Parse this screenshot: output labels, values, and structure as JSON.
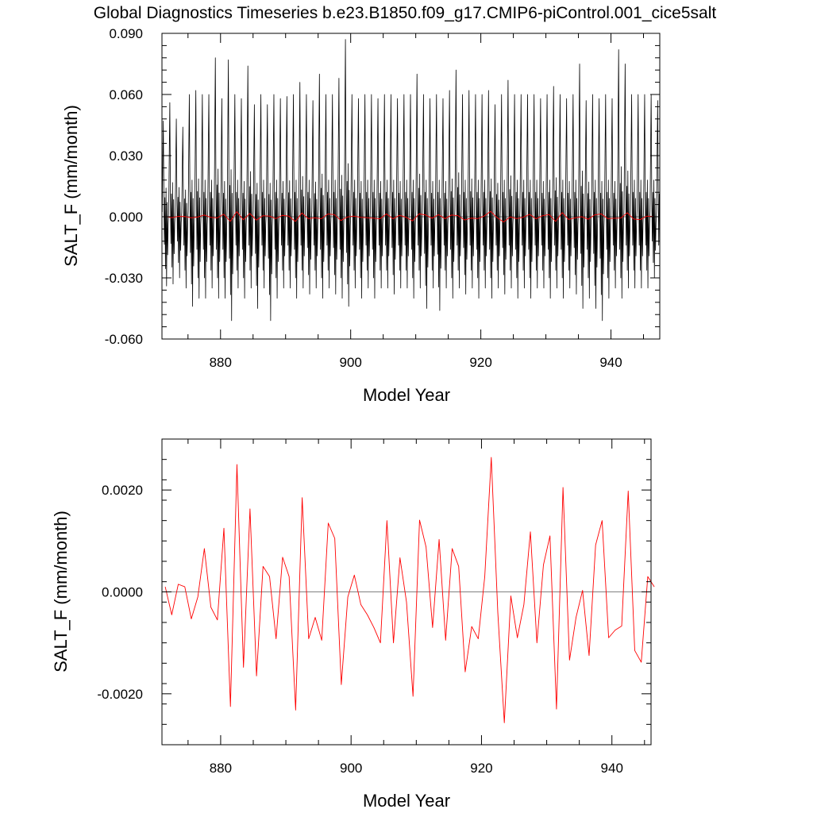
{
  "title": "Global Diagnostics Timeseries b.e23.B1850.f09_g17.CMIP6-piControl.001_cice5salt",
  "colors": {
    "monthly": "#000000",
    "annual": "#ff0000",
    "zero_line": "#808080",
    "background": "#ffffff"
  },
  "chart_data": [
    {
      "type": "line",
      "xlabel": "Model Year",
      "ylabel": "SALT_F (mm/month)",
      "xlim": [
        871,
        947.5
      ],
      "ylim": [
        -0.06,
        0.09
      ],
      "xticks": [
        880,
        900,
        920,
        940
      ],
      "xtick_labels": [
        "880",
        "900",
        "920",
        "940"
      ],
      "yticks": [
        -0.06,
        -0.03,
        0.0,
        0.03,
        0.06,
        0.09
      ],
      "ytick_labels": [
        "-0.060",
        "-0.030",
        "0.000",
        "0.030",
        "0.060",
        "0.090"
      ],
      "grid": false,
      "series": [
        {
          "resolution": "monthly",
          "color": "#000000",
          "x_start": 871.04,
          "x_step": 0.0833,
          "peaks": [
            0.047,
            0.056,
            0.048,
            0.044,
            0.06,
            0.062,
            0.06,
            0.06,
            0.078,
            0.058,
            0.077,
            0.06,
            0.058,
            0.074,
            0.055,
            0.06,
            0.055,
            0.06,
            0.058,
            0.059,
            0.06,
            0.066,
            0.06,
            0.057,
            0.07,
            0.06,
            0.06,
            0.068,
            0.087,
            0.06,
            0.058,
            0.06,
            0.06,
            0.058,
            0.06,
            0.06,
            0.058,
            0.06,
            0.06,
            0.07,
            0.06,
            0.058,
            0.06,
            0.058,
            0.062,
            0.072,
            0.06,
            0.062,
            0.06,
            0.06,
            0.062,
            0.055,
            0.06,
            0.067,
            0.06,
            0.06,
            0.06,
            0.06,
            0.058,
            0.06,
            0.064,
            0.06,
            0.058,
            0.06,
            0.075,
            0.057,
            0.06,
            0.058,
            0.06,
            0.058,
            0.082,
            0.075,
            0.06,
            0.06,
            0.06,
            0.06,
            0.057
          ],
          "troughs": [
            -0.034,
            -0.033,
            -0.03,
            -0.035,
            -0.044,
            -0.04,
            -0.04,
            -0.035,
            -0.04,
            -0.04,
            -0.051,
            -0.035,
            -0.04,
            -0.035,
            -0.045,
            -0.035,
            -0.051,
            -0.04,
            -0.035,
            -0.035,
            -0.04,
            -0.035,
            -0.038,
            -0.035,
            -0.04,
            -0.035,
            -0.038,
            -0.04,
            -0.044,
            -0.035,
            -0.04,
            -0.035,
            -0.04,
            -0.035,
            -0.035,
            -0.038,
            -0.035,
            -0.035,
            -0.04,
            -0.035,
            -0.045,
            -0.035,
            -0.046,
            -0.035,
            -0.04,
            -0.035,
            -0.038,
            -0.035,
            -0.04,
            -0.035,
            -0.04,
            -0.035,
            -0.038,
            -0.035,
            -0.04,
            -0.035,
            -0.04,
            -0.035,
            -0.035,
            -0.04,
            -0.035,
            -0.04,
            -0.035,
            -0.038,
            -0.045,
            -0.04,
            -0.045,
            -0.051,
            -0.04,
            -0.035,
            -0.04,
            -0.035,
            -0.035,
            -0.035,
            -0.035,
            -0.03,
            -0.035
          ]
        },
        {
          "resolution": "annual",
          "color": "#ff0000",
          "x": [
            871.0,
            872.0,
            873.0,
            874.0,
            875.0,
            876.0,
            877.0,
            878.0,
            879.0,
            880.0,
            881.0,
            882.0,
            883.0,
            884.0,
            885.0,
            886.0,
            887.0,
            888.0,
            889.0,
            890.0,
            891.0,
            892.0,
            893.0,
            894.0,
            895.0,
            896.0,
            897.0,
            898.0,
            899.0,
            900.0,
            901.0,
            902.0,
            903.0,
            904.0,
            905.0,
            906.0,
            907.0,
            908.0,
            909.0,
            910.0,
            911.0,
            912.0,
            913.0,
            914.0,
            915.0,
            916.0,
            917.0,
            918.0,
            919.0,
            920.0,
            921.0,
            922.0,
            923.0,
            924.0,
            925.0,
            926.0,
            927.0,
            928.0,
            929.0,
            930.0,
            931.0,
            932.0,
            933.0,
            934.0,
            935.0,
            936.0,
            937.0,
            938.0,
            939.0,
            940.0,
            941.0,
            942.0,
            943.0,
            944.0,
            945.0,
            946.0
          ],
          "y": [
            0.0001,
            -0.00045,
            0.00015,
            0.0001,
            -0.00053,
            -0.0001,
            0.00085,
            -0.0003,
            -0.00055,
            0.00125,
            -0.00225,
            0.0025,
            -0.00148,
            0.00163,
            -0.00165,
            0.0005,
            0.0003,
            -0.00092,
            0.00068,
            0.0003,
            -0.00232,
            0.00185,
            -0.00092,
            -0.0005,
            -0.00095,
            0.00135,
            0.00105,
            -0.00182,
            -0.0001,
            0.00033,
            -0.00025,
            -0.00045,
            -0.0007,
            -0.001,
            0.0014,
            -0.001,
            0.00067,
            -0.0002,
            -0.00205,
            0.00141,
            0.00088,
            -0.0007,
            0.00103,
            -0.00095,
            0.00085,
            0.0005,
            -0.00157,
            -0.00068,
            -0.00092,
            0.0003,
            0.00264,
            -0.0004,
            -0.00257,
            -8e-05,
            -0.0009,
            -0.00025,
            0.00118,
            -0.001,
            0.00053,
            0.0011,
            -0.0023,
            0.00205,
            -0.00134,
            -0.0005,
            3e-05,
            -0.00125,
            0.00092,
            0.0014,
            -0.0009,
            -0.00075,
            -0.00067,
            0.00198,
            -0.00115,
            -0.00138,
            0.0003,
            0.0001
          ]
        }
      ]
    },
    {
      "type": "line",
      "xlabel": "Model Year",
      "ylabel": "SALT_F (mm/month)",
      "xlim": [
        871,
        946
      ],
      "ylim": [
        -0.003,
        0.003
      ],
      "xticks": [
        880,
        900,
        920,
        940
      ],
      "xtick_labels": [
        "880",
        "900",
        "920",
        "940"
      ],
      "yticks": [
        -0.002,
        0.0,
        0.002
      ],
      "ytick_labels": [
        "-0.0020",
        "0.0000",
        "0.0020"
      ],
      "grid": false,
      "series": [
        {
          "resolution": "annual",
          "color": "#ff0000",
          "x": [
            871.0,
            872.0,
            873.0,
            874.0,
            875.0,
            876.0,
            877.0,
            878.0,
            879.0,
            880.0,
            881.0,
            882.0,
            883.0,
            884.0,
            885.0,
            886.0,
            887.0,
            888.0,
            889.0,
            890.0,
            891.0,
            892.0,
            893.0,
            894.0,
            895.0,
            896.0,
            897.0,
            898.0,
            899.0,
            900.0,
            901.0,
            902.0,
            903.0,
            904.0,
            905.0,
            906.0,
            907.0,
            908.0,
            909.0,
            910.0,
            911.0,
            912.0,
            913.0,
            914.0,
            915.0,
            916.0,
            917.0,
            918.0,
            919.0,
            920.0,
            921.0,
            922.0,
            923.0,
            924.0,
            925.0,
            926.0,
            927.0,
            928.0,
            929.0,
            930.0,
            931.0,
            932.0,
            933.0,
            934.0,
            935.0,
            936.0,
            937.0,
            938.0,
            939.0,
            940.0,
            941.0,
            942.0,
            943.0,
            944.0,
            945.0,
            946.0
          ],
          "y": [
            0.0001,
            -0.00045,
            0.00015,
            0.0001,
            -0.00053,
            -0.0001,
            0.00085,
            -0.0003,
            -0.00055,
            0.00125,
            -0.00225,
            0.0025,
            -0.00148,
            0.00163,
            -0.00165,
            0.0005,
            0.0003,
            -0.00092,
            0.00068,
            0.0003,
            -0.00232,
            0.00185,
            -0.00092,
            -0.0005,
            -0.00095,
            0.00135,
            0.00105,
            -0.00182,
            -0.0001,
            0.00033,
            -0.00025,
            -0.00045,
            -0.0007,
            -0.001,
            0.0014,
            -0.001,
            0.00067,
            -0.0002,
            -0.00205,
            0.00141,
            0.00088,
            -0.0007,
            0.00103,
            -0.00095,
            0.00085,
            0.0005,
            -0.00157,
            -0.00068,
            -0.00092,
            0.0003,
            0.00264,
            -0.0004,
            -0.00257,
            -8e-05,
            -0.0009,
            -0.00025,
            0.00118,
            -0.001,
            0.00053,
            0.0011,
            -0.0023,
            0.00205,
            -0.00134,
            -0.0005,
            3e-05,
            -0.00125,
            0.00092,
            0.0014,
            -0.0009,
            -0.00075,
            -0.00067,
            0.00198,
            -0.00115,
            -0.00138,
            0.0003,
            0.0001
          ]
        }
      ]
    }
  ]
}
